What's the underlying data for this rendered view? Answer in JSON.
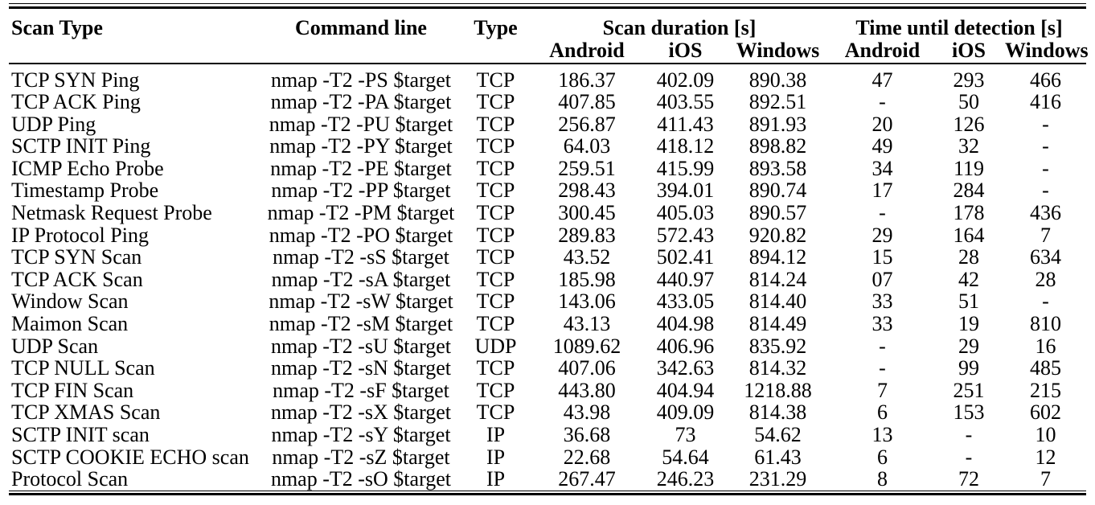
{
  "page": {
    "background_color": "#ffffff",
    "text_color": "#000000",
    "rule_color": "#000000"
  },
  "table": {
    "headers": {
      "scan_type": "Scan Type",
      "command_line": "Command line",
      "type": "Type",
      "scan_duration_group": "Scan duration [s]",
      "detection_group": "Time until detection [s]",
      "sub_columns": [
        "Android",
        "iOS",
        "Windows",
        "Android",
        "iOS",
        "Windows"
      ]
    },
    "rows": [
      {
        "cells": [
          "TCP SYN Ping",
          "nmap -T2 -PS $target",
          "TCP",
          "186.37",
          "402.09",
          "890.38",
          "47",
          "293",
          "466"
        ]
      },
      {
        "cells": [
          "TCP ACK Ping",
          "nmap -T2 -PA $target",
          "TCP",
          "407.85",
          "403.55",
          "892.51",
          "-",
          "50",
          "416"
        ]
      },
      {
        "cells": [
          "UDP Ping",
          "nmap -T2 -PU $target",
          "TCP",
          "256.87",
          "411.43",
          "891.93",
          "20",
          "126",
          "-"
        ]
      },
      {
        "cells": [
          "SCTP INIT Ping",
          "nmap -T2 -PY $target",
          "TCP",
          "64.03",
          "418.12",
          "898.82",
          "49",
          "32",
          "-"
        ]
      },
      {
        "cells": [
          "ICMP Echo Probe",
          "nmap -T2 -PE $target",
          "TCP",
          "259.51",
          "415.99",
          "893.58",
          "34",
          "119",
          "-"
        ]
      },
      {
        "cells": [
          "Timestamp Probe",
          "nmap -T2 -PP $target",
          "TCP",
          "298.43",
          "394.01",
          "890.74",
          "17",
          "284",
          "-"
        ]
      },
      {
        "cells": [
          "Netmask Request Probe",
          "nmap -T2 -PM $target",
          "TCP",
          "300.45",
          "405.03",
          "890.57",
          "-",
          "178",
          "436"
        ]
      },
      {
        "cells": [
          "IP Protocol Ping",
          "nmap -T2 -PO $target",
          "TCP",
          "289.83",
          "572.43",
          "920.82",
          "29",
          "164",
          "7"
        ]
      },
      {
        "cells": [
          "TCP SYN Scan",
          "nmap -T2 -sS $target",
          "TCP",
          "43.52",
          "502.41",
          "894.12",
          "15",
          "28",
          "634"
        ]
      },
      {
        "cells": [
          "TCP ACK Scan",
          "nmap -T2 -sA $target",
          "TCP",
          "185.98",
          "440.97",
          "814.24",
          "07",
          "42",
          "28"
        ]
      },
      {
        "cells": [
          "Window Scan",
          "nmap -T2 -sW $target",
          "TCP",
          "143.06",
          "433.05",
          "814.40",
          "33",
          "51",
          "-"
        ]
      },
      {
        "cells": [
          "Maimon Scan",
          "nmap -T2 -sM $target",
          "TCP",
          "43.13",
          "404.98",
          "814.49",
          "33",
          "19",
          "810"
        ]
      },
      {
        "cells": [
          "UDP Scan",
          "nmap -T2 -sU $target",
          "UDP",
          "1089.62",
          "406.96",
          "835.92",
          "-",
          "29",
          "16"
        ]
      },
      {
        "cells": [
          "TCP NULL Scan",
          "nmap -T2 -sN $target",
          "TCP",
          "407.06",
          "342.63",
          "814.32",
          "-",
          "99",
          "485"
        ]
      },
      {
        "cells": [
          "TCP FIN Scan",
          "nmap -T2 -sF $target",
          "TCP",
          "443.80",
          "404.94",
          "1218.88",
          "7",
          "251",
          "215"
        ]
      },
      {
        "cells": [
          "TCP XMAS Scan",
          "nmap -T2 -sX $target",
          "TCP",
          "43.98",
          "409.09",
          "814.38",
          "6",
          "153",
          "602"
        ]
      },
      {
        "cells": [
          "SCTP INIT scan",
          "nmap -T2 -sY $target",
          "IP",
          "36.68",
          "73",
          "54.62",
          "13",
          "-",
          "10"
        ]
      },
      {
        "cells": [
          "SCTP COOKIE ECHO scan",
          "nmap -T2 -sZ $target",
          "IP",
          "22.68",
          "54.64",
          "61.43",
          "6",
          "-",
          "12"
        ]
      },
      {
        "cells": [
          "Protocol Scan",
          "nmap -T2 -sO $target",
          "IP",
          "267.47",
          "246.23",
          "231.29",
          "8",
          "72",
          "7"
        ]
      }
    ]
  }
}
